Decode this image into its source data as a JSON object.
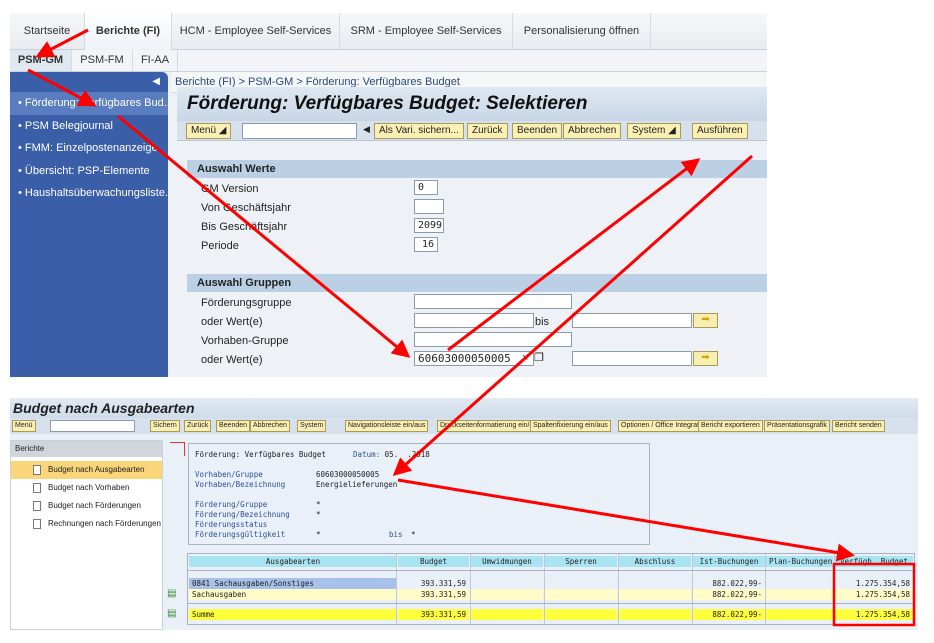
{
  "portal": {
    "tabs": [
      "Startseite",
      "Berichte (FI)",
      "HCM - Employee Self-Services",
      "SRM - Employee Self-Services",
      "Personalisierung öffnen"
    ],
    "subtabs": [
      "PSM-GM",
      "PSM-FM",
      "FI-AA"
    ],
    "nav_items": [
      "Förderung: Verfügbares Bud...",
      "PSM Belegjournal",
      "FMM: Einzelpostenanzeige",
      "Übersicht: PSP-Elemente",
      "Haushaltsüberwachungsliste..."
    ],
    "breadcrumb": "Berichte (FI)  >  PSM-GM  >  Förderung: Verfügbares Budget",
    "title": "Förderung: Verfügbares Budget: Selektieren",
    "toolbar": [
      "Menü",
      "Als Vari. sichern...",
      "Zurück",
      "Beenden",
      "Abbrechen",
      "System",
      "Ausführen"
    ],
    "sec1": "Auswahl Werte",
    "sec1_fields": [
      {
        "label": "GM Version",
        "value": "0"
      },
      {
        "label": "Von Geschäftsjahr",
        "value": ""
      },
      {
        "label": "Bis Geschäftsjahr",
        "value": "2099"
      },
      {
        "label": "Periode",
        "value": "16"
      }
    ],
    "sec2": "Auswahl Gruppen",
    "sec2_fields": [
      {
        "label": "Förderungsgruppe"
      },
      {
        "label": "oder Wert(e)"
      },
      {
        "label": "Vorhaben-Gruppe"
      },
      {
        "label": "oder Wert(e)",
        "value": "60603000050005"
      }
    ],
    "bis": "bis"
  },
  "report": {
    "title": "Budget nach Ausgabearten",
    "toolbar": [
      "Menü",
      "Sichern",
      "Zurück",
      "Beenden",
      "Abbrechen",
      "System",
      "Navigationsleiste ein/aus",
      "Druckseitenformatierung ein/aus",
      "Spaltenfixierung ein/aus",
      "Optionen / Office Integration",
      "Bericht exportieren",
      "Präsentationsgrafik",
      "Bericht senden"
    ],
    "nav_header": "Berichte",
    "nav_items": [
      "Budget nach Ausgabearten",
      "Budget nach Vorhaben",
      "Budget nach Förderungen",
      "Rechnungen nach Förderungen"
    ],
    "header": {
      "title": "Förderung: Verfügbares Budget",
      "date_label": "Datum:",
      "date": "05.  .2018",
      "rows": [
        [
          "Vorhaben/Gruppe",
          "60603000050005"
        ],
        [
          "Vorhaben/Bezeichnung",
          "Energielieferungen"
        ],
        [
          "Förderung/Gruppe",
          "*"
        ],
        [
          "Förderung/Bezeichnung",
          "*"
        ],
        [
          "Förderungsstatus",
          ""
        ],
        [
          "Förderungsgültigkeit",
          "*"
        ]
      ],
      "bis": "bis",
      "bis_value": "*"
    },
    "columns": [
      "Ausgabearten",
      "Budget",
      "Umwidmungen",
      "Sperren",
      "Abschluss",
      "Ist-Buchungen",
      "Plan-Buchungen",
      "Verfügb. Budget"
    ],
    "rows": [
      [
        "0841  Sachausgaben/Sonstiges",
        "393.331,59",
        "",
        "",
        "",
        "882.022,99-",
        "",
        "1.275.354,58"
      ],
      [
        "Sachausgaben",
        "393.331,59",
        "",
        "",
        "",
        "882.022,99-",
        "",
        "1.275.354,58"
      ],
      [
        "Summe",
        "393.331,59",
        "",
        "",
        "",
        "882.022,99-",
        "",
        "1.275.354,58"
      ]
    ]
  },
  "colors": {
    "annotation": "#ff0000",
    "nav_blue": "#3a5ea7",
    "button": "#fbf0b4",
    "summary": "#ffff3c"
  }
}
